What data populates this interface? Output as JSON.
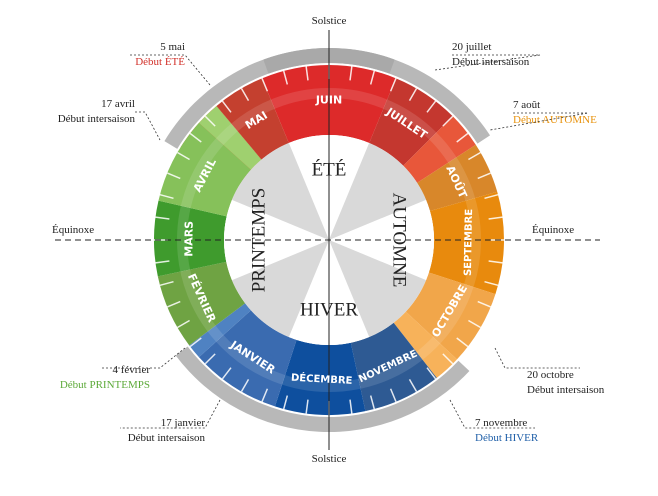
{
  "seasons": [
    {
      "key": "ete",
      "label": "ÉTÉ",
      "angle": 0
    },
    {
      "key": "automne",
      "label": "AUTOMNE",
      "angle": 90
    },
    {
      "key": "hiver",
      "label": "HIVER",
      "angle": 180
    },
    {
      "key": "printemps",
      "label": "PRINTEMPS",
      "angle": 270
    }
  ],
  "months": [
    {
      "key": "juin",
      "label": "JUIN",
      "start": -22.5,
      "end": 22.5,
      "color": "#dd2a2a"
    },
    {
      "key": "juillet",
      "label": "JUILLET",
      "start": 22.5,
      "end": 45,
      "color": "#c4372f"
    },
    {
      "key": "juillet-tail",
      "label": "",
      "start": 45,
      "end": 57,
      "color": "#e8573a"
    },
    {
      "key": "aout",
      "label": "AOÛT",
      "start": 57,
      "end": 74,
      "color": "#d8872a"
    },
    {
      "key": "septembre",
      "label": "SEPTEMBRE",
      "start": 74,
      "end": 108,
      "color": "#e88a0d"
    },
    {
      "key": "octobre",
      "label": "OCTOBRE",
      "start": 108,
      "end": 133,
      "color": "#f1a64a"
    },
    {
      "key": "octobre-tail",
      "label": "",
      "start": 133,
      "end": 142,
      "color": "#f7b25a"
    },
    {
      "key": "novembre",
      "label": "NOVEMBRE",
      "start": 142,
      "end": 168,
      "color": "#2e5a93"
    },
    {
      "key": "decembre",
      "label": "DÉCEMBRE",
      "start": 168,
      "end": 198,
      "color": "#0e4f9e"
    },
    {
      "key": "janvier",
      "label": "JANVIER",
      "start": 198,
      "end": 228,
      "color": "#3a6bb0"
    },
    {
      "key": "janvier-tail",
      "label": "",
      "start": 228,
      "end": 233,
      "color": "#4f82c2"
    },
    {
      "key": "fevrier",
      "label": "FÉVRIER",
      "start": 233,
      "end": 258,
      "color": "#6fa343"
    },
    {
      "key": "mars",
      "label": "MARS",
      "start": 258,
      "end": 283,
      "color": "#3f9b2d"
    },
    {
      "key": "avril",
      "label": "AVRIL",
      "start": 283,
      "end": 312,
      "color": "#86c15a"
    },
    {
      "key": "avril-tail",
      "label": "",
      "start": 312,
      "end": 320,
      "color": "#9fd06f"
    },
    {
      "key": "mai",
      "label": "MAI",
      "start": 320,
      "end": 337.5,
      "color": "#c4402f"
    },
    {
      "key": "mai-tail",
      "label": "",
      "start": 310,
      "end": 320,
      "color": "#e8573a"
    }
  ],
  "labels": {
    "solstice_top": "Solstice",
    "solstice_bottom": "Solstice",
    "equinox_left": "Équinoxe",
    "equinox_right": "Équinoxe"
  },
  "annotations": [
    {
      "key": "mai5",
      "line1": "5 mai",
      "line2": "Début ÉTÉ",
      "color2": "#d2312a"
    },
    {
      "key": "juil20",
      "line1": "20 juillet",
      "line2": "Début intersaison",
      "color2": "#222222"
    },
    {
      "key": "aout7",
      "line1": "7 août",
      "line2": "Début AUTOMNE",
      "color2": "#e8930e"
    },
    {
      "key": "oct20",
      "line1": "20 octobre",
      "line2": "Début intersaison",
      "color2": "#222222"
    },
    {
      "key": "nov7",
      "line1": "7 novembre",
      "line2": "Début HIVER",
      "color2": "#1f5fa8"
    },
    {
      "key": "jan17",
      "line1": "17 janvier",
      "line2": "Début intersaison",
      "color2": "#222222"
    },
    {
      "key": "fev4",
      "line1": "4 février",
      "line2": "Début PRINTEMPS",
      "color2": "#5daa3a"
    },
    {
      "key": "avr17",
      "line1": "17 avril",
      "line2": "Début intersaison",
      "color2": "#222222"
    }
  ]
}
